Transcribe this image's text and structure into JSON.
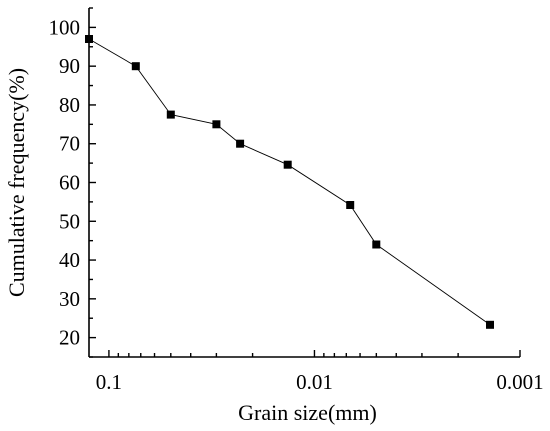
{
  "chart_data": {
    "type": "scatter",
    "title": "",
    "xlabel": "Grain size(mm)",
    "ylabel": "Cumulative frequency(%)",
    "x_scale": "log",
    "x_reversed": true,
    "xlim": [
      0.125,
      0.001
    ],
    "ylim": [
      15,
      105
    ],
    "x_ticks": [
      {
        "value": 0.1,
        "label": "0.1"
      },
      {
        "value": 0.01,
        "label": "0.01"
      },
      {
        "value": 0.001,
        "label": "0.001"
      }
    ],
    "y_ticks": [
      {
        "value": 20,
        "label": "20"
      },
      {
        "value": 30,
        "label": "30"
      },
      {
        "value": 40,
        "label": "40"
      },
      {
        "value": 50,
        "label": "50"
      },
      {
        "value": 60,
        "label": "60"
      },
      {
        "value": 70,
        "label": "70"
      },
      {
        "value": 80,
        "label": "80"
      },
      {
        "value": 90,
        "label": "90"
      },
      {
        "value": 100,
        "label": "100"
      }
    ],
    "grid": false,
    "legend": "none",
    "series": [
      {
        "marker": "square",
        "connected": true,
        "color": "#000000",
        "x": [
          0.125,
          0.074,
          0.05,
          0.03,
          0.023,
          0.0135,
          0.0067,
          0.005,
          0.0014
        ],
        "y": [
          97,
          90,
          77.5,
          75,
          70,
          64.6,
          54.2,
          44,
          23.3
        ]
      }
    ]
  }
}
